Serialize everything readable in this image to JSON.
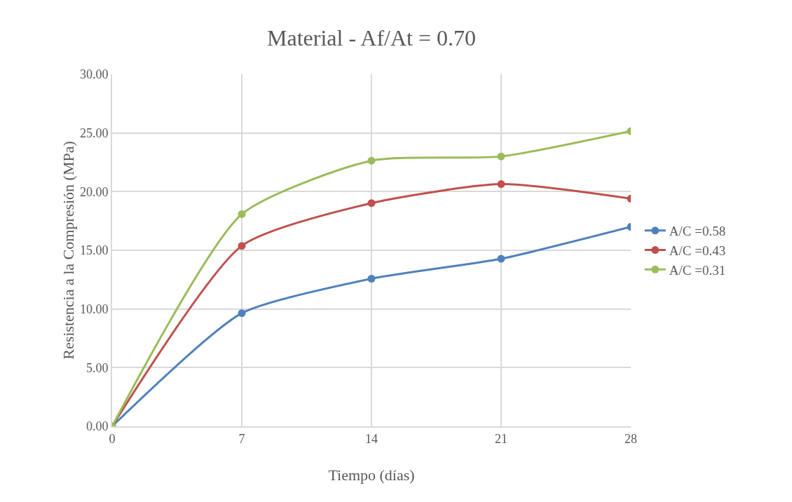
{
  "chart_data": {
    "type": "line",
    "title": "Material - Af/At = 0.70",
    "xlabel": "Tiempo (días)",
    "ylabel": "Resistencia a la Compresión (MPa)",
    "x": [
      0,
      7,
      14,
      21,
      28
    ],
    "series": [
      {
        "name": "A/C =0.58",
        "color": "#4f81bd",
        "values": [
          0,
          9.64,
          12.58,
          14.28,
          17.0
        ]
      },
      {
        "name": "A/C =0.43",
        "color": "#c0504d",
        "values": [
          0,
          15.38,
          19.02,
          20.64,
          19.4
        ]
      },
      {
        "name": "A/C =0.31",
        "color": "#9bbb59",
        "values": [
          0,
          18.08,
          22.64,
          23.0,
          25.16
        ]
      }
    ],
    "xlim": [
      0,
      28
    ],
    "xticks": [
      0,
      7,
      14,
      21,
      28
    ],
    "ylim": [
      0,
      30
    ],
    "yticks": [
      {
        "value": 0,
        "label": "0.00"
      },
      {
        "value": 5,
        "label": "5.00"
      },
      {
        "value": 10,
        "label": "10.00"
      },
      {
        "value": 15,
        "label": "15.00"
      },
      {
        "value": 20,
        "label": "20.00"
      },
      {
        "value": 25,
        "label": "25.00"
      },
      {
        "value": 30,
        "label": "30.00"
      }
    ],
    "grid": true,
    "legend": "right",
    "marker": "circle",
    "line_style": "solid"
  }
}
